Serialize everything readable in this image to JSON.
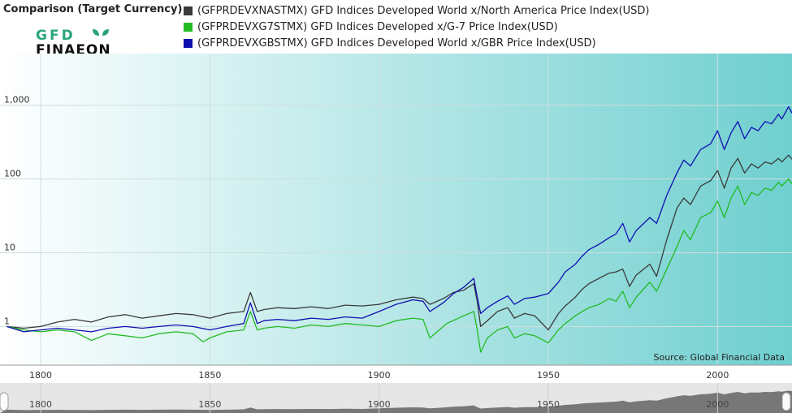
{
  "header": {
    "chart_label": "Comparison (Target Currency)",
    "logo_text_top": "GFD",
    "logo_text_bottom": "FINAEON"
  },
  "source_text": "Source: Global Financial Data",
  "colors": {
    "nast": "#3a3a3a",
    "g7": "#22bb22",
    "gbs": "#1010b0",
    "bg_left": "#ffffff",
    "bg_right": "#6fcfcf",
    "logo_green": "#2aa57a"
  },
  "navigator": {
    "ticks": [
      "1800",
      "1850",
      "1900",
      "1950",
      "2000"
    ]
  },
  "chart_data": {
    "type": "line",
    "y_scale": "log",
    "xlim": [
      1788,
      2022
    ],
    "ylim": [
      0.3,
      5000
    ],
    "x_ticks": [
      1800,
      1850,
      1900,
      1950,
      2000
    ],
    "y_ticks": [
      1,
      10,
      100,
      1000
    ],
    "y_tick_labels": [
      "1",
      "10",
      "100",
      "1,000"
    ],
    "grid": true,
    "legend_placement": "top",
    "series": [
      {
        "name": "(GFPRDEVXNASTMX) GFD Indices Developed World x/North America Price Index(USD)",
        "key": "nast",
        "points": [
          [
            1790,
            1.0
          ],
          [
            1795,
            0.95
          ],
          [
            1800,
            1.0
          ],
          [
            1805,
            1.15
          ],
          [
            1810,
            1.25
          ],
          [
            1815,
            1.15
          ],
          [
            1820,
            1.35
          ],
          [
            1825,
            1.45
          ],
          [
            1830,
            1.3
          ],
          [
            1835,
            1.4
          ],
          [
            1840,
            1.5
          ],
          [
            1845,
            1.45
          ],
          [
            1850,
            1.3
          ],
          [
            1855,
            1.5
          ],
          [
            1860,
            1.6
          ],
          [
            1862,
            2.9
          ],
          [
            1864,
            1.6
          ],
          [
            1866,
            1.7
          ],
          [
            1870,
            1.8
          ],
          [
            1875,
            1.75
          ],
          [
            1880,
            1.85
          ],
          [
            1885,
            1.75
          ],
          [
            1890,
            1.95
          ],
          [
            1895,
            1.9
          ],
          [
            1900,
            2.0
          ],
          [
            1905,
            2.3
          ],
          [
            1910,
            2.5
          ],
          [
            1913,
            2.4
          ],
          [
            1915,
            2.0
          ],
          [
            1919,
            2.4
          ],
          [
            1922,
            2.9
          ],
          [
            1925,
            3.1
          ],
          [
            1928,
            3.8
          ],
          [
            1929,
            2.2
          ],
          [
            1930,
            1.0
          ],
          [
            1932,
            1.2
          ],
          [
            1935,
            1.6
          ],
          [
            1938,
            1.8
          ],
          [
            1940,
            1.3
          ],
          [
            1943,
            1.5
          ],
          [
            1946,
            1.4
          ],
          [
            1950,
            0.9
          ],
          [
            1953,
            1.5
          ],
          [
            1955,
            1.9
          ],
          [
            1958,
            2.5
          ],
          [
            1960,
            3.2
          ],
          [
            1962,
            3.8
          ],
          [
            1965,
            4.5
          ],
          [
            1968,
            5.3
          ],
          [
            1970,
            5.5
          ],
          [
            1972,
            6.0
          ],
          [
            1974,
            3.5
          ],
          [
            1976,
            5.0
          ],
          [
            1980,
            7.0
          ],
          [
            1982,
            4.8
          ],
          [
            1985,
            15
          ],
          [
            1988,
            40
          ],
          [
            1990,
            55
          ],
          [
            1992,
            45
          ],
          [
            1995,
            80
          ],
          [
            1998,
            95
          ],
          [
            2000,
            130
          ],
          [
            2002,
            75
          ],
          [
            2004,
            140
          ],
          [
            2006,
            190
          ],
          [
            2008,
            120
          ],
          [
            2010,
            160
          ],
          [
            2012,
            140
          ],
          [
            2014,
            170
          ],
          [
            2016,
            160
          ],
          [
            2018,
            190
          ],
          [
            2019,
            170
          ],
          [
            2021,
            210
          ],
          [
            2022,
            185
          ]
        ]
      },
      {
        "name": "(GFPRDEVXG7STMX) GFD Indices Developed x/G-7 Price Index(USD)",
        "key": "g7",
        "points": [
          [
            1790,
            1.0
          ],
          [
            1795,
            0.9
          ],
          [
            1800,
            0.85
          ],
          [
            1805,
            0.9
          ],
          [
            1810,
            0.85
          ],
          [
            1815,
            0.65
          ],
          [
            1820,
            0.8
          ],
          [
            1825,
            0.75
          ],
          [
            1830,
            0.7
          ],
          [
            1835,
            0.8
          ],
          [
            1840,
            0.85
          ],
          [
            1845,
            0.8
          ],
          [
            1848,
            0.62
          ],
          [
            1850,
            0.7
          ],
          [
            1855,
            0.85
          ],
          [
            1860,
            0.9
          ],
          [
            1862,
            1.6
          ],
          [
            1864,
            0.9
          ],
          [
            1866,
            0.95
          ],
          [
            1870,
            1.0
          ],
          [
            1875,
            0.95
          ],
          [
            1880,
            1.05
          ],
          [
            1885,
            1.0
          ],
          [
            1890,
            1.1
          ],
          [
            1895,
            1.05
          ],
          [
            1900,
            1.0
          ],
          [
            1905,
            1.2
          ],
          [
            1910,
            1.3
          ],
          [
            1913,
            1.25
          ],
          [
            1915,
            0.7
          ],
          [
            1920,
            1.1
          ],
          [
            1925,
            1.4
          ],
          [
            1928,
            1.6
          ],
          [
            1929,
            0.9
          ],
          [
            1930,
            0.45
          ],
          [
            1932,
            0.7
          ],
          [
            1935,
            0.9
          ],
          [
            1938,
            1.0
          ],
          [
            1940,
            0.7
          ],
          [
            1943,
            0.8
          ],
          [
            1946,
            0.75
          ],
          [
            1950,
            0.6
          ],
          [
            1953,
            0.9
          ],
          [
            1955,
            1.1
          ],
          [
            1958,
            1.4
          ],
          [
            1960,
            1.6
          ],
          [
            1962,
            1.8
          ],
          [
            1965,
            2.0
          ],
          [
            1968,
            2.4
          ],
          [
            1970,
            2.2
          ],
          [
            1972,
            3.0
          ],
          [
            1974,
            1.8
          ],
          [
            1976,
            2.5
          ],
          [
            1980,
            4.0
          ],
          [
            1982,
            3.0
          ],
          [
            1985,
            6.0
          ],
          [
            1988,
            12
          ],
          [
            1990,
            20
          ],
          [
            1992,
            15
          ],
          [
            1995,
            30
          ],
          [
            1998,
            35
          ],
          [
            2000,
            50
          ],
          [
            2002,
            30
          ],
          [
            2004,
            55
          ],
          [
            2006,
            80
          ],
          [
            2008,
            45
          ],
          [
            2010,
            65
          ],
          [
            2012,
            60
          ],
          [
            2014,
            75
          ],
          [
            2016,
            70
          ],
          [
            2018,
            90
          ],
          [
            2019,
            80
          ],
          [
            2021,
            100
          ],
          [
            2022,
            85
          ]
        ]
      },
      {
        "name": "(GFPRDEVXGBSTMX) GFD Indices Developed World x/GBR Price Index(USD)",
        "key": "gbs",
        "points": [
          [
            1790,
            1.0
          ],
          [
            1795,
            0.85
          ],
          [
            1800,
            0.9
          ],
          [
            1805,
            0.95
          ],
          [
            1810,
            0.9
          ],
          [
            1815,
            0.85
          ],
          [
            1820,
            0.95
          ],
          [
            1825,
            1.0
          ],
          [
            1830,
            0.95
          ],
          [
            1835,
            1.0
          ],
          [
            1840,
            1.05
          ],
          [
            1845,
            1.0
          ],
          [
            1850,
            0.9
          ],
          [
            1855,
            1.0
          ],
          [
            1860,
            1.1
          ],
          [
            1862,
            2.1
          ],
          [
            1864,
            1.1
          ],
          [
            1866,
            1.2
          ],
          [
            1870,
            1.25
          ],
          [
            1875,
            1.2
          ],
          [
            1880,
            1.3
          ],
          [
            1885,
            1.25
          ],
          [
            1890,
            1.35
          ],
          [
            1895,
            1.3
          ],
          [
            1900,
            1.6
          ],
          [
            1905,
            2.0
          ],
          [
            1910,
            2.3
          ],
          [
            1913,
            2.2
          ],
          [
            1915,
            1.6
          ],
          [
            1919,
            2.1
          ],
          [
            1922,
            2.8
          ],
          [
            1925,
            3.4
          ],
          [
            1928,
            4.5
          ],
          [
            1929,
            2.5
          ],
          [
            1930,
            1.5
          ],
          [
            1932,
            1.8
          ],
          [
            1935,
            2.2
          ],
          [
            1938,
            2.6
          ],
          [
            1940,
            2.0
          ],
          [
            1943,
            2.4
          ],
          [
            1946,
            2.5
          ],
          [
            1950,
            2.8
          ],
          [
            1953,
            4.0
          ],
          [
            1955,
            5.5
          ],
          [
            1958,
            7.0
          ],
          [
            1960,
            9.0
          ],
          [
            1962,
            11
          ],
          [
            1965,
            13
          ],
          [
            1968,
            16
          ],
          [
            1970,
            18
          ],
          [
            1972,
            25
          ],
          [
            1974,
            14
          ],
          [
            1976,
            20
          ],
          [
            1980,
            30
          ],
          [
            1982,
            25
          ],
          [
            1985,
            60
          ],
          [
            1988,
            120
          ],
          [
            1990,
            180
          ],
          [
            1992,
            150
          ],
          [
            1995,
            250
          ],
          [
            1998,
            300
          ],
          [
            2000,
            450
          ],
          [
            2002,
            250
          ],
          [
            2004,
            420
          ],
          [
            2006,
            600
          ],
          [
            2008,
            350
          ],
          [
            2010,
            500
          ],
          [
            2012,
            450
          ],
          [
            2014,
            600
          ],
          [
            2016,
            560
          ],
          [
            2018,
            750
          ],
          [
            2019,
            650
          ],
          [
            2021,
            950
          ],
          [
            2022,
            780
          ]
        ]
      }
    ]
  }
}
